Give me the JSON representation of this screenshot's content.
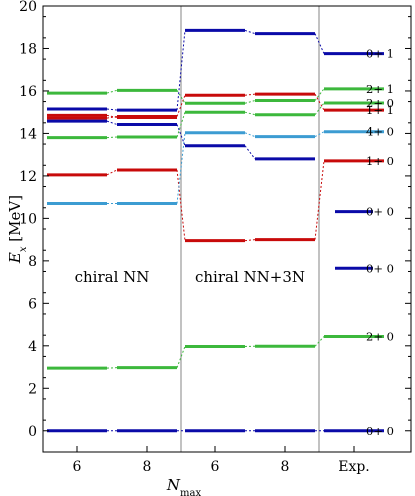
{
  "chart_data": {
    "type": "level-scheme",
    "ylabel_symbol": "E",
    "ylabel_subscript": "x",
    "ylabel_unit": "[MeV]",
    "xlabel_symbol": "N",
    "xlabel_subscript": "max",
    "ylim": [
      -1,
      20
    ],
    "yticks": [
      0,
      2,
      4,
      6,
      8,
      10,
      12,
      14,
      16,
      18,
      20
    ],
    "columns": [
      "6",
      "8",
      "6",
      "8",
      "Exp."
    ],
    "groups": [
      {
        "label": "chiral NN",
        "columns": [
          0,
          1
        ]
      },
      {
        "label": "chiral NN+3N",
        "columns": [
          2,
          3
        ]
      }
    ],
    "colors": {
      "0+ 0": "#0a0aa8",
      "2+ 0": "#3cb83c",
      "1+ 0": "#c80a0a",
      "4+ 0": "#3c9cd2",
      "1+ 1": "#c80a0a",
      "0+ 1": "#0a0aa8",
      "2+ 1": "#3cb83c"
    },
    "series": [
      {
        "color_key": "0+ 0",
        "values": [
          0,
          0,
          0,
          0,
          0
        ]
      },
      {
        "color_key": "2+ 0",
        "values": [
          2.95,
          2.97,
          3.97,
          3.98,
          4.44
        ]
      },
      {
        "color_key": "1+ 0",
        "values": [
          12.05,
          12.28,
          8.95,
          9.0,
          12.71
        ]
      },
      {
        "color_key": "4+ 0",
        "values": [
          10.7,
          10.7,
          14.03,
          13.85,
          14.08
        ]
      },
      {
        "color_key": "2+ 0",
        "values": [
          13.8,
          13.83,
          15.0,
          14.88,
          15.43
        ]
      },
      {
        "color_key": "1+ 1",
        "values": [
          14.72,
          14.8,
          15.8,
          15.85,
          15.1
        ]
      },
      {
        "color_key": "2+ 1",
        "values": [
          15.9,
          16.03,
          15.42,
          15.55,
          16.1
        ]
      },
      {
        "color_key": "0+ 1",
        "values": [
          15.15,
          15.1,
          18.85,
          18.7,
          17.76
        ]
      },
      {
        "color_key": "0+ 0",
        "values": [
          14.58,
          14.42,
          13.42,
          12.8,
          null
        ]
      },
      {
        "color_key": "1+ 0",
        "values": [
          14.85,
          14.75,
          null,
          null,
          null
        ]
      }
    ],
    "exp_extra": [
      {
        "color_key": "0+ 0",
        "value": 10.32
      },
      {
        "color_key": "0+ 0",
        "value": 7.65
      }
    ],
    "exp_labels": [
      {
        "text": "0+ 1",
        "y": 17.76
      },
      {
        "text": "2+ 1",
        "y": 16.1
      },
      {
        "text": "2+ 0",
        "y": 15.43
      },
      {
        "text": "1+ 1",
        "y": 15.1
      },
      {
        "text": "4+ 0",
        "y": 14.08
      },
      {
        "text": "1+ 0",
        "y": 12.71
      },
      {
        "text": "0+ 0",
        "y": 10.32
      },
      {
        "text": "0+ 0",
        "y": 7.65
      },
      {
        "text": "2+ 0",
        "y": 4.44
      },
      {
        "text": "0+ 0",
        "y": 0
      }
    ]
  }
}
